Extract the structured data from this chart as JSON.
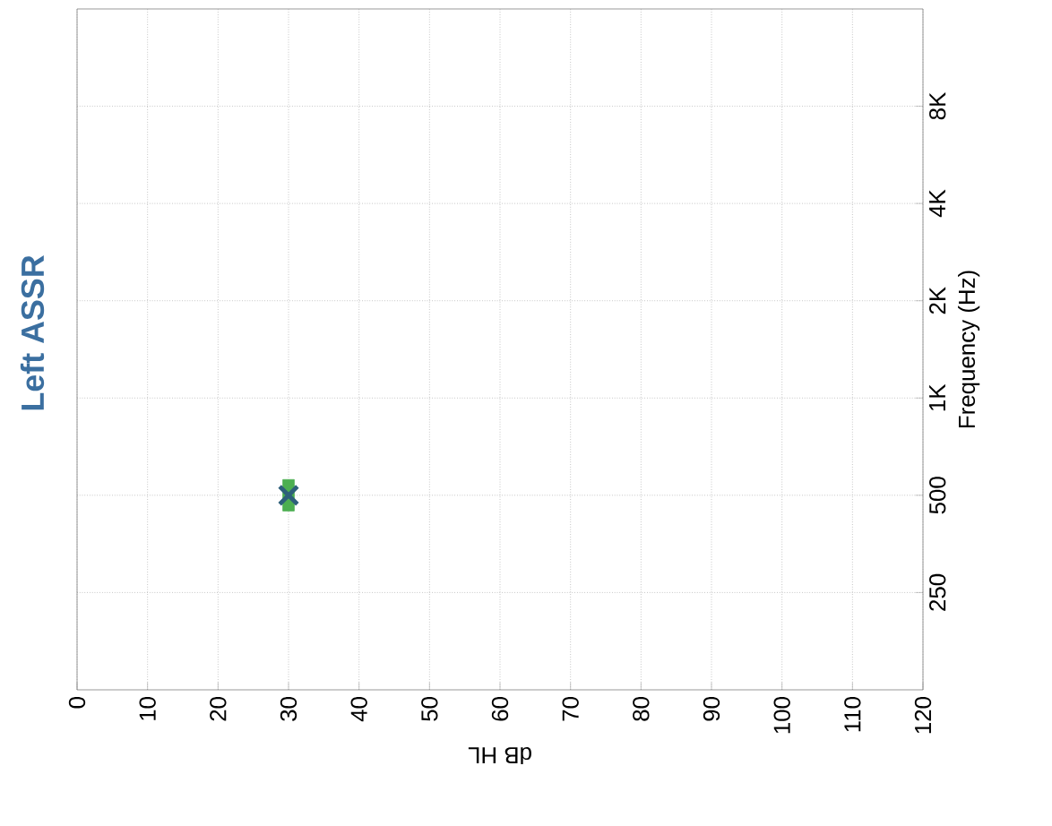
{
  "chart_data": {
    "type": "scatter",
    "title": "Left ASSR",
    "xlabel": "dB HL",
    "ylabel": "Frequency (Hz)",
    "xlim": [
      0,
      120
    ],
    "xticks": [
      0,
      10,
      20,
      30,
      40,
      50,
      60,
      70,
      80,
      90,
      100,
      110,
      120
    ],
    "ylim": [
      125,
      16000
    ],
    "log": "y",
    "yticks": [
      250,
      500,
      {
        "value": 1000,
        "label": "1K"
      },
      {
        "value": 2000,
        "label": "2K"
      },
      {
        "value": 4000,
        "label": "4K"
      },
      {
        "value": 8000,
        "label": "8K"
      }
    ],
    "grid": true,
    "series": [
      {
        "marker": "square",
        "color": "#4caf50",
        "x": [
          30
        ],
        "values": [
          500
        ]
      },
      {
        "marker": "cross",
        "color": "#2e5f7a",
        "x": [
          30
        ],
        "values": [
          500
        ]
      }
    ]
  }
}
